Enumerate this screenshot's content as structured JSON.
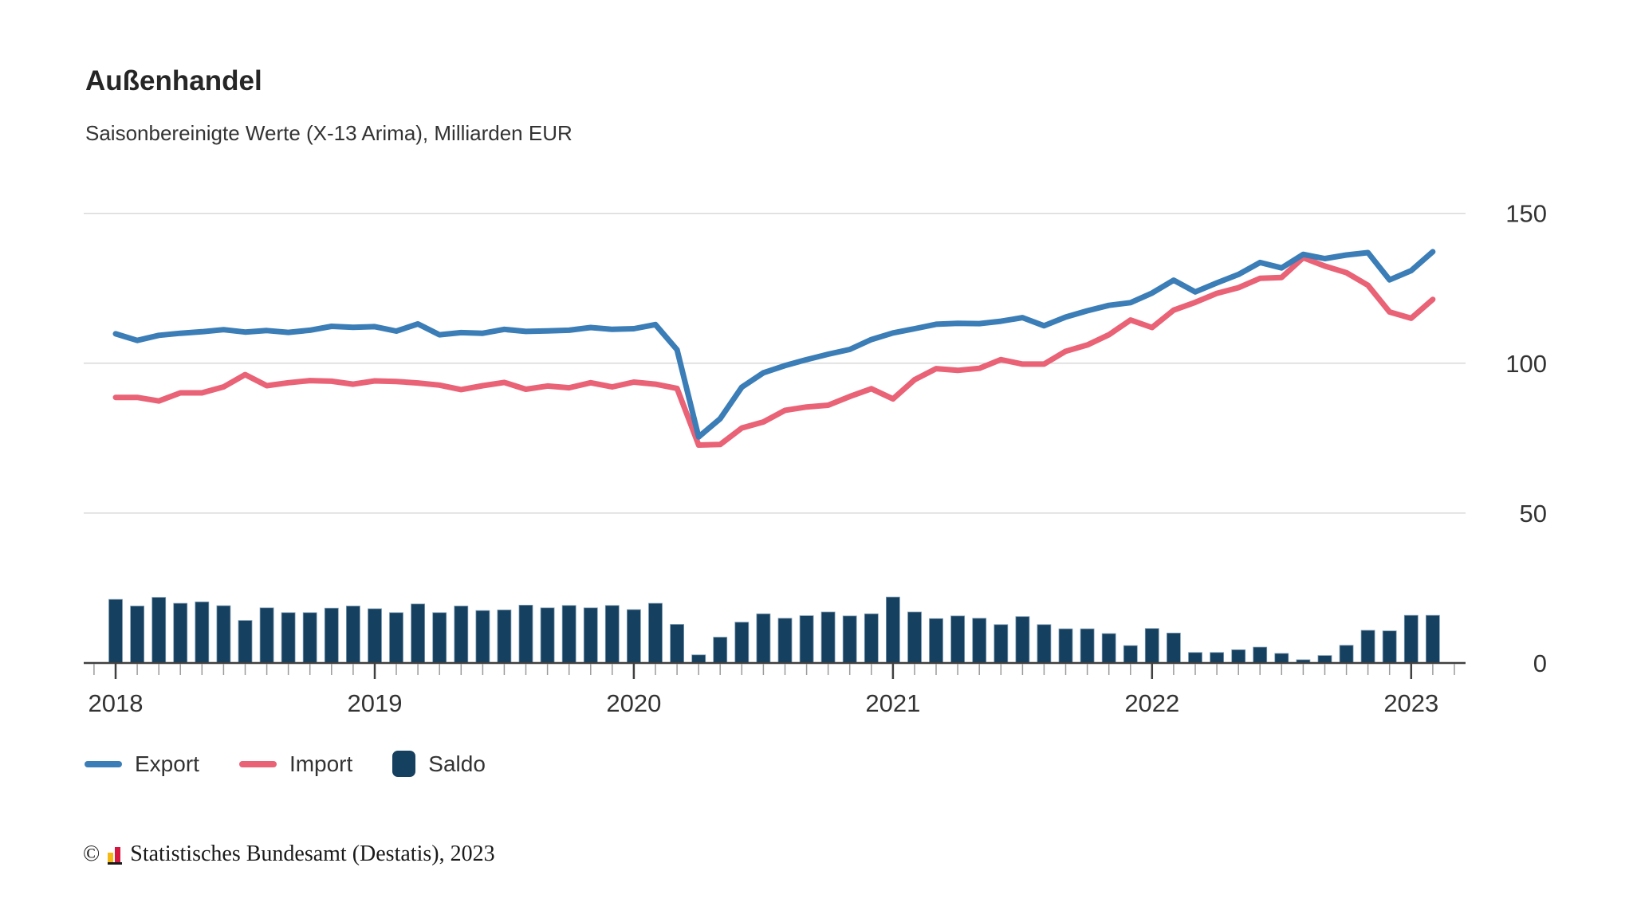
{
  "header": {
    "title": "Außenhandel",
    "subtitle": "Saisonbereinigte Werte (X-13 Arima), Milliarden EUR"
  },
  "chart_data": {
    "type": "line+bar",
    "title": "Außenhandel",
    "subtitle": "Saisonbereinigte Werte (X-13 Arima), Milliarden EUR",
    "unit": "Milliarden EUR",
    "xlabel": "",
    "ylabel": "",
    "ylim": [
      0,
      155
    ],
    "y_ticks": [
      0,
      50,
      100,
      150
    ],
    "year_ticks": [
      "2018",
      "2019",
      "2020",
      "2021",
      "2022",
      "2023"
    ],
    "grid": "horizontal",
    "legend_position": "bottom",
    "months": [
      "2018-01",
      "2018-02",
      "2018-03",
      "2018-04",
      "2018-05",
      "2018-06",
      "2018-07",
      "2018-08",
      "2018-09",
      "2018-10",
      "2018-11",
      "2018-12",
      "2019-01",
      "2019-02",
      "2019-03",
      "2019-04",
      "2019-05",
      "2019-06",
      "2019-07",
      "2019-08",
      "2019-09",
      "2019-10",
      "2019-11",
      "2019-12",
      "2020-01",
      "2020-02",
      "2020-03",
      "2020-04",
      "2020-05",
      "2020-06",
      "2020-07",
      "2020-08",
      "2020-09",
      "2020-10",
      "2020-11",
      "2020-12",
      "2021-01",
      "2021-02",
      "2021-03",
      "2021-04",
      "2021-05",
      "2021-06",
      "2021-07",
      "2021-08",
      "2021-09",
      "2021-10",
      "2021-11",
      "2021-12",
      "2022-01",
      "2022-02",
      "2022-03",
      "2022-04",
      "2022-05",
      "2022-06",
      "2022-07",
      "2022-08",
      "2022-09",
      "2022-10",
      "2022-11",
      "2022-12",
      "2023-01",
      "2023-02"
    ],
    "series": [
      {
        "name": "Export",
        "type": "line",
        "color": "#3b7db6",
        "values": [
          109.8,
          107.6,
          109.3,
          110.0,
          110.5,
          111.2,
          110.4,
          110.9,
          110.3,
          111.0,
          112.3,
          112.0,
          112.2,
          110.7,
          113.1,
          109.5,
          110.2,
          110.0,
          111.3,
          110.6,
          110.8,
          111.0,
          111.9,
          111.3,
          111.5,
          112.9,
          104.5,
          75.4,
          81.5,
          92.0,
          96.8,
          99.2,
          101.2,
          103.0,
          104.6,
          107.9,
          110.1,
          111.5,
          113.0,
          113.3,
          113.2,
          114.0,
          115.2,
          112.5,
          115.4,
          117.5,
          119.3,
          120.2,
          123.4,
          127.7,
          123.8,
          126.8,
          129.6,
          133.6,
          131.8,
          136.3,
          134.9,
          136.1,
          136.9,
          127.8,
          130.9,
          137.2
        ]
      },
      {
        "name": "Import",
        "type": "line",
        "color": "#e96276",
        "values": [
          88.6,
          88.6,
          87.4,
          90.1,
          90.1,
          92.1,
          96.2,
          92.5,
          93.5,
          94.2,
          94.0,
          93.0,
          94.1,
          93.9,
          93.4,
          92.7,
          91.2,
          92.5,
          93.6,
          91.3,
          92.4,
          91.8,
          93.5,
          92.1,
          93.7,
          93.0,
          91.6,
          72.7,
          72.9,
          78.4,
          80.4,
          84.3,
          85.4,
          86.0,
          88.9,
          91.5,
          88.1,
          94.5,
          98.2,
          97.6,
          98.3,
          101.2,
          99.7,
          99.7,
          104.0,
          106.1,
          109.5,
          114.4,
          111.9,
          117.7,
          120.3,
          123.3,
          125.2,
          128.3,
          128.6,
          135.2,
          132.4,
          130.2,
          126.0,
          117.1,
          115.0,
          121.3
        ]
      },
      {
        "name": "Saldo",
        "type": "bar",
        "color": "#16405f",
        "values": [
          21.2,
          19.0,
          21.9,
          19.9,
          20.4,
          19.1,
          14.2,
          18.4,
          16.8,
          16.8,
          18.3,
          19.0,
          18.1,
          16.8,
          19.7,
          16.8,
          19.0,
          17.5,
          17.7,
          19.3,
          18.4,
          19.2,
          18.4,
          19.2,
          17.8,
          19.9,
          12.9,
          2.7,
          8.6,
          13.6,
          16.4,
          14.9,
          15.8,
          17.0,
          15.7,
          16.4,
          22.0,
          17.0,
          14.8,
          15.7,
          14.9,
          12.8,
          15.5,
          12.8,
          11.4,
          11.4,
          9.8,
          5.8,
          11.5,
          10.0,
          3.5,
          3.5,
          4.4,
          5.3,
          3.2,
          1.1,
          2.5,
          5.9,
          10.9,
          10.7,
          15.9,
          15.9
        ]
      }
    ],
    "colors": {
      "export": "#3b7db6",
      "import": "#e96276",
      "saldo": "#16405f",
      "gridline": "#d9d9d9",
      "axis": "#404040",
      "minor_tick": "#9a9a9a",
      "text": "#333333"
    }
  },
  "legend": {
    "items": [
      {
        "label": "Export",
        "color": "#3b7db6",
        "shape": "line"
      },
      {
        "label": "Import",
        "color": "#e96276",
        "shape": "line"
      },
      {
        "label": "Saldo",
        "color": "#16405f",
        "shape": "square"
      }
    ]
  },
  "footer": {
    "copyright": "©",
    "source": "Statistisches Bundesamt (Destatis), 2023",
    "logo_colors": {
      "gold": "#f5b915",
      "red": "#d5173f"
    }
  }
}
